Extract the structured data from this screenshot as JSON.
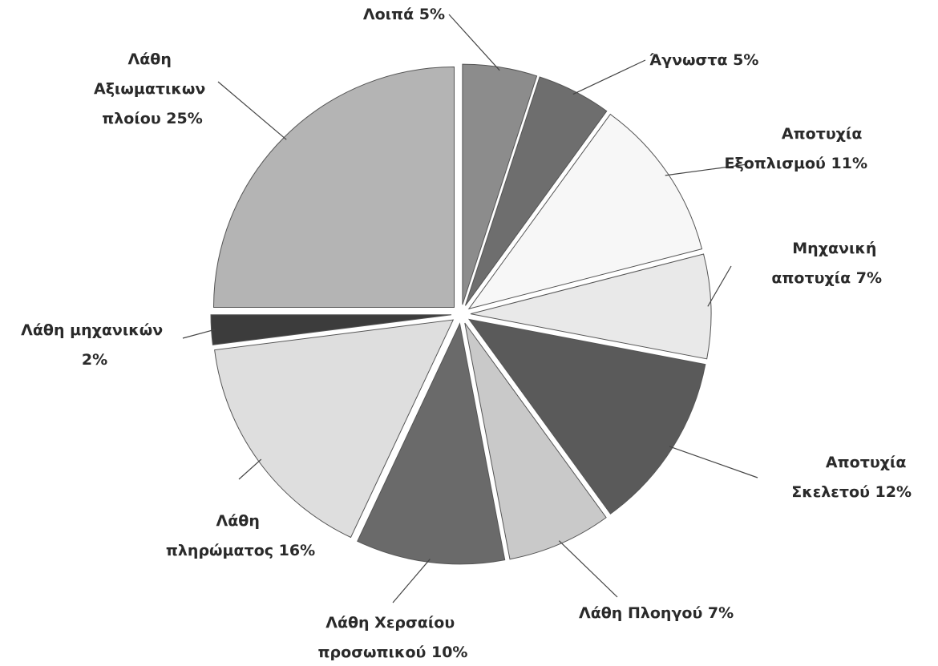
{
  "chart_data": {
    "type": "pie",
    "categories": [
      "Λοιπά",
      "Άγνωστα",
      "Αποτυχία Εξοπλισμού",
      "Μηχανική αποτυχία",
      "Αποτυχία Σκελετού",
      "Λάθη Πλοηγού",
      "Λάθη Χερσαίου προσωπικού",
      "Λάθη πληρώματος",
      "Λάθη μηχανικών",
      "Λάθη Αξιωματικων πλοίου"
    ],
    "values": [
      5,
      5,
      11,
      7,
      12,
      7,
      10,
      16,
      2,
      25
    ],
    "value_labels": [
      "5%",
      "5%",
      "11%",
      "7%",
      "12%",
      "7%",
      "10%",
      "16%",
      "2%",
      "25%"
    ],
    "colors": [
      "#8c8c8c",
      "#6e6e6e",
      "#f7f7f7",
      "#e9e9e9",
      "#5a5a5a",
      "#c9c9c9",
      "#6a6a6a",
      "#dedede",
      "#3c3c3c",
      "#b4b4b4"
    ]
  }
}
